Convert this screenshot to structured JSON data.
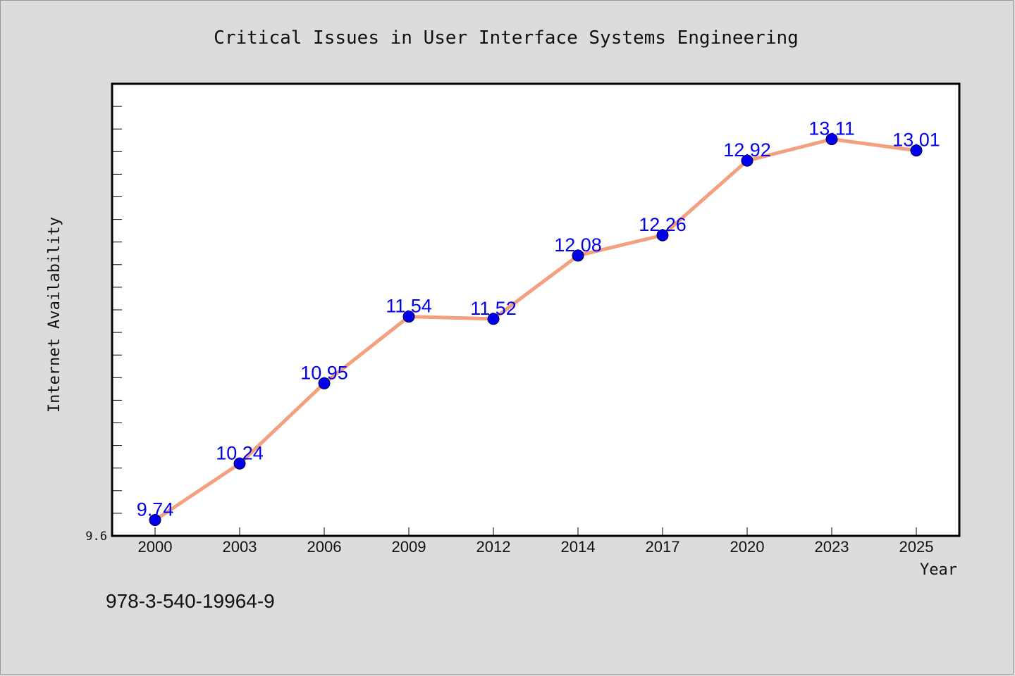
{
  "chart_data": {
    "type": "line",
    "title": "Critical Issues in User Interface Systems Engineering",
    "xlabel": "Year",
    "ylabel": "Internet Availability",
    "categories": [
      "2000",
      "2003",
      "2006",
      "2009",
      "2012",
      "2014",
      "2017",
      "2020",
      "2023",
      "2025"
    ],
    "series": [
      {
        "values": [
          9.74,
          10.24,
          10.95,
          11.54,
          11.52,
          12.08,
          12.26,
          12.92,
          13.11,
          13.01
        ]
      }
    ],
    "ylim": [
      9.6,
      13.6
    ],
    "y_min_label": "9.6",
    "grid": false,
    "data_labels": true,
    "colors": {
      "line": "#f4a07f",
      "marker": "#0000ee",
      "data_label": "#0000ee",
      "plot_background": "#ffffff",
      "figure_background": "#dcdcdc"
    }
  },
  "footer": {
    "isbn": "978-3-540-19964-9"
  }
}
